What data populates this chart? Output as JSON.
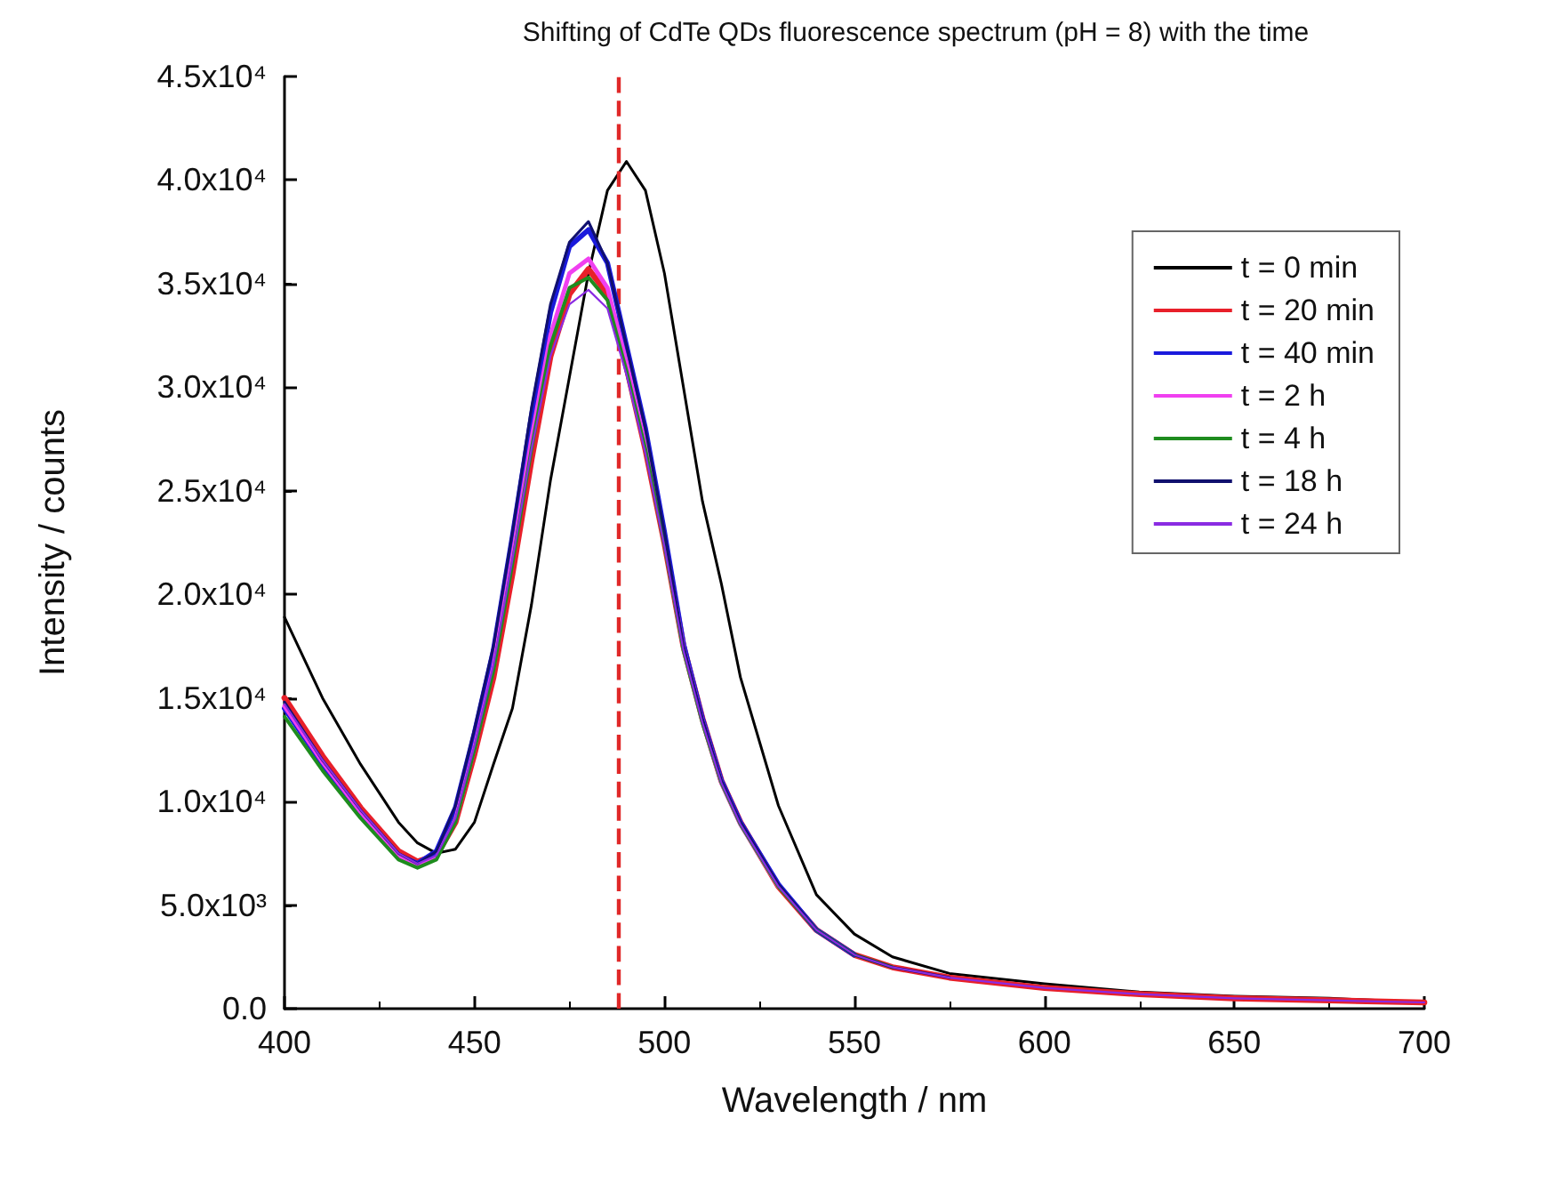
{
  "chart_data": {
    "type": "line",
    "title": "Shifting of CdTe QDs fluorescence spectrum (pH = 8) with the time",
    "xlabel": "Wavelength / nm",
    "ylabel": "Intensity / counts",
    "x": [
      400,
      410,
      420,
      430,
      435,
      440,
      445,
      450,
      455,
      460,
      465,
      470,
      475,
      480,
      485,
      490,
      495,
      500,
      505,
      510,
      515,
      520,
      530,
      540,
      550,
      560,
      575,
      600,
      625,
      650,
      675,
      700
    ],
    "series": [
      {
        "name": "t = 0 min",
        "color": "#000000",
        "values": [
          18900,
          15000,
          11800,
          9000,
          8000,
          7500,
          7700,
          9000,
          11800,
          14500,
          19500,
          25500,
          30500,
          35500,
          39500,
          40900,
          39500,
          35500,
          30000,
          24500,
          20500,
          16000,
          9800,
          5500,
          3600,
          2500,
          1700,
          1200,
          800,
          600,
          500,
          300
        ]
      },
      {
        "name": "t = 20 min",
        "color": "#e8202a",
        "values": [
          15000,
          12200,
          9700,
          7600,
          7100,
          7400,
          9000,
          12300,
          16000,
          21000,
          26500,
          31500,
          34500,
          35700,
          34500,
          31000,
          27000,
          22500,
          17500,
          14000,
          11000,
          9000,
          5900,
          3800,
          2600,
          2000,
          1500,
          1000,
          700,
          500,
          400,
          300
        ]
      },
      {
        "name": "t = 40 min",
        "color": "#1a1adc",
        "values": [
          14500,
          11800,
          9400,
          7400,
          7000,
          7600,
          9700,
          13300,
          17300,
          22800,
          28600,
          33600,
          36800,
          37600,
          36000,
          32000,
          28000,
          23000,
          17600,
          14000,
          11000,
          9000,
          6000,
          3800,
          2600,
          null,
          null,
          null,
          null,
          null,
          null,
          null
        ]
      },
      {
        "name": "t = 2 h",
        "color": "#f040f0",
        "values": [
          14600,
          11900,
          9500,
          7400,
          6900,
          7300,
          9100,
          12600,
          16500,
          21800,
          27500,
          32500,
          35500,
          36200,
          34800,
          31200,
          27200,
          22600,
          17400,
          13900,
          10900,
          8900,
          5900,
          null,
          null,
          null,
          null,
          null,
          null,
          null,
          null,
          null
        ]
      },
      {
        "name": "t = 4 h",
        "color": "#1e8c1e",
        "values": [
          14100,
          11500,
          9200,
          7200,
          6800,
          7200,
          9000,
          12500,
          16300,
          21500,
          27000,
          32000,
          34800,
          35300,
          34200,
          30800,
          27000,
          22400,
          17300,
          13800,
          10900,
          8900,
          5900,
          3800,
          2600,
          2000,
          null,
          null,
          null,
          null,
          null,
          null
        ]
      },
      {
        "name": "t = 18 h",
        "color": "#10106e",
        "values": [
          14800,
          12000,
          9600,
          7500,
          7000,
          7600,
          9800,
          13500,
          17500,
          23000,
          29000,
          34000,
          37000,
          38000,
          36000,
          32000,
          28000,
          23000,
          17500,
          14000,
          11000,
          9000,
          6000,
          3800,
          2600,
          2000,
          1500,
          null,
          null,
          null,
          null,
          null
        ]
      },
      {
        "name": "t = 24 h",
        "color": "#8a2be2",
        "values": [
          14700,
          12000,
          9600,
          7500,
          7000,
          7400,
          9200,
          12700,
          16600,
          21700,
          27000,
          31500,
          34000,
          34700,
          33800,
          30600,
          26800,
          22300,
          17300,
          13800,
          10900,
          8900,
          5900,
          3800,
          2600,
          2000,
          1500,
          1000,
          700,
          500,
          400,
          300
        ]
      }
    ],
    "xlim": [
      400,
      700
    ],
    "xticks": [
      400,
      450,
      500,
      550,
      600,
      650,
      700
    ],
    "ylim": [
      0,
      45000
    ],
    "yticks": [
      {
        "value": 0,
        "label": "0.0"
      },
      {
        "value": 5000,
        "label": "5.0x10³"
      },
      {
        "value": 10000,
        "label": "1.0x10⁴"
      },
      {
        "value": 15000,
        "label": "1.5x10⁴"
      },
      {
        "value": 20000,
        "label": "2.0x10⁴"
      },
      {
        "value": 25000,
        "label": "2.5x10⁴"
      },
      {
        "value": 30000,
        "label": "3.0x10⁴"
      },
      {
        "value": 35000,
        "label": "3.5x10⁴"
      },
      {
        "value": 40000,
        "label": "4.0x10⁴"
      },
      {
        "value": 45000,
        "label": "4.5x10⁴"
      }
    ],
    "ref_lines": [
      {
        "axis": "x",
        "value": 488,
        "color": "#e02828",
        "line_style": "dashed"
      }
    ],
    "legend": "top right",
    "grid": false,
    "marker": "none",
    "line_style": "solid"
  }
}
